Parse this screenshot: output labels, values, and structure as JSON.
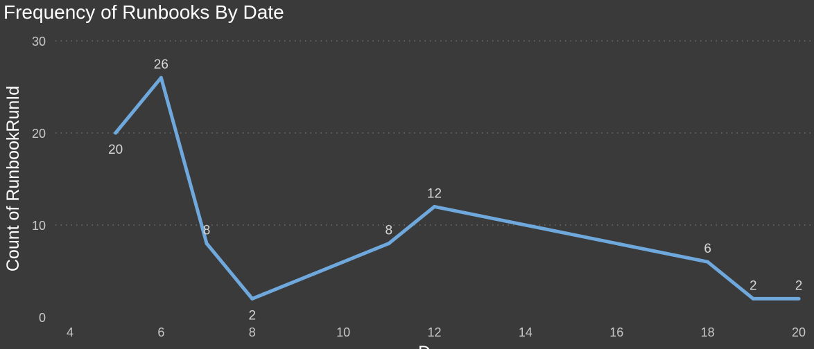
{
  "chart_data": {
    "type": "line",
    "title": "Frequency of Runbooks By Date",
    "xlabel": "D",
    "ylabel": "Count of RunbookRunId",
    "xlim": [
      4,
      20
    ],
    "ylim": [
      0,
      30
    ],
    "x_ticks": [
      4,
      6,
      8,
      10,
      12,
      14,
      16,
      18,
      20
    ],
    "y_ticks": [
      0,
      10,
      20,
      30
    ],
    "grid": "horizontal",
    "legend": "none",
    "series": [
      {
        "color": "#6fa8dc",
        "points": [
          {
            "x": 5,
            "y": 20
          },
          {
            "x": 6,
            "y": 26
          },
          {
            "x": 7,
            "y": 8
          },
          {
            "x": 8,
            "y": 2
          },
          {
            "x": 11,
            "y": 8
          },
          {
            "x": 12,
            "y": 12
          },
          {
            "x": 18,
            "y": 6
          },
          {
            "x": 19,
            "y": 2
          },
          {
            "x": 20,
            "y": 2
          }
        ]
      }
    ]
  }
}
